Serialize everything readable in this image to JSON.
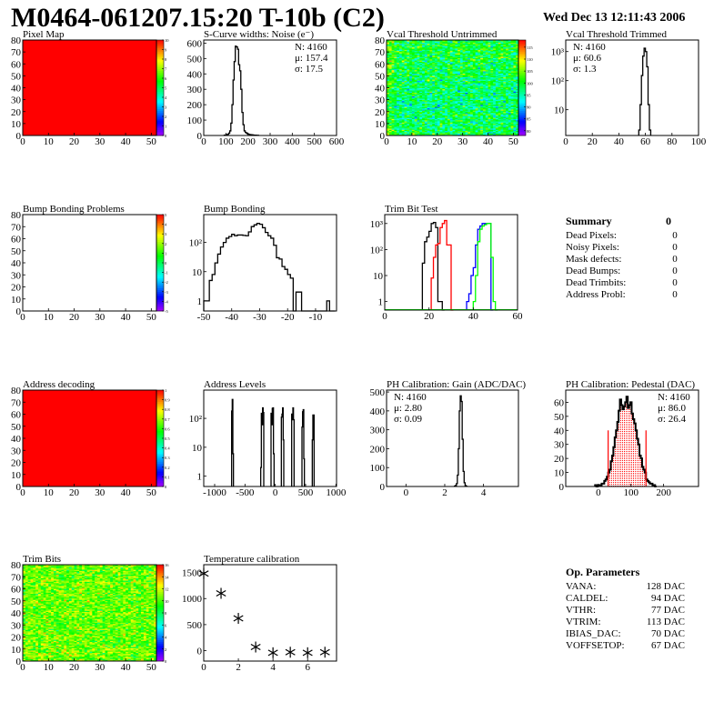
{
  "header": {
    "title": "M0464-061207.15:20 T-10b (C2)",
    "date": "Wed Dec 13 12:11:43 2006"
  },
  "summary": {
    "heading": "Summary",
    "total": "0",
    "rows": [
      {
        "label": "Dead Pixels:",
        "value": "0"
      },
      {
        "label": "Noisy Pixels:",
        "value": "0"
      },
      {
        "label": "Mask defects:",
        "value": "0"
      },
      {
        "label": "Dead Bumps:",
        "value": "0"
      },
      {
        "label": "Dead Trimbits:",
        "value": "0"
      },
      {
        "label": "Address Probl:",
        "value": "0"
      }
    ]
  },
  "op_parameters": {
    "heading": "Op. Parameters",
    "rows": [
      {
        "label": "VANA:",
        "value": "128 DAC"
      },
      {
        "label": "CALDEL:",
        "value": "94 DAC"
      },
      {
        "label": "VTHR:",
        "value": "77 DAC"
      },
      {
        "label": "VTRIM:",
        "value": "113 DAC"
      },
      {
        "label": "IBIAS_DAC:",
        "value": "70 DAC"
      },
      {
        "label": "VOFFSETOP:",
        "value": "67 DAC"
      }
    ]
  },
  "chart_data": [
    {
      "type": "heatmap",
      "title": "Pixel Map",
      "xlim": [
        0,
        52
      ],
      "ylim": [
        0,
        80
      ],
      "zlim": [
        0,
        10
      ],
      "fill_value": 10,
      "xticks": [
        0,
        10,
        20,
        30,
        40,
        50
      ],
      "xtick_labels": [
        "0",
        "10",
        "20",
        "30",
        "40",
        "50"
      ],
      "yticks": [
        0,
        10,
        20,
        30,
        40,
        50,
        60,
        70,
        80
      ],
      "ytick_labels": [
        "0",
        "10",
        "20",
        "30",
        "40",
        "50",
        "60",
        "70",
        "80"
      ],
      "zticks": [
        0,
        1,
        2,
        3,
        4,
        5,
        6,
        7,
        8,
        9,
        10
      ],
      "ztick_labels": [
        "0",
        "1",
        "2",
        "3",
        "4",
        "5",
        "6",
        "7",
        "8",
        "9",
        "10"
      ]
    },
    {
      "type": "bar",
      "title": "S-Curve widths: Noise (e⁻)",
      "xlim": [
        0,
        600
      ],
      "ylim": [
        0,
        620
      ],
      "log_y": false,
      "xticks": [
        0,
        100,
        200,
        300,
        400,
        500,
        600
      ],
      "xtick_labels": [
        "0",
        "100",
        "200",
        "300",
        "400",
        "500",
        "600"
      ],
      "yticks": [
        0,
        100,
        200,
        300,
        400,
        500,
        600
      ],
      "ytick_labels": [
        "0",
        "100",
        "200",
        "300",
        "400",
        "500",
        "600"
      ],
      "stats": [
        "N: 4160",
        "μ: 157.4",
        "σ: 17.5"
      ],
      "stats_colors": [
        "#000000",
        "#000000",
        "#000000"
      ],
      "series": [
        {
          "color": "#000000",
          "x_start": 92.5,
          "bin_width": 5,
          "values": [
            2,
            3,
            5,
            8,
            15,
            30,
            80,
            200,
            360,
            480,
            580,
            575,
            560,
            460,
            420,
            300,
            150,
            70,
            30,
            20,
            15,
            10,
            8,
            6,
            5,
            4,
            3,
            2,
            2,
            1,
            1
          ]
        }
      ]
    },
    {
      "type": "heatmap",
      "title": "Vcal Threshold Untrimmed",
      "xlim": [
        0,
        52
      ],
      "ylim": [
        0,
        80
      ],
      "zlim": [
        78,
        118
      ],
      "z_mean": 97,
      "z_sd": 4,
      "xticks": [
        0,
        10,
        20,
        30,
        40,
        50
      ],
      "xtick_labels": [
        "0",
        "10",
        "20",
        "30",
        "40",
        "50"
      ],
      "yticks": [
        0,
        10,
        20,
        30,
        40,
        50,
        60,
        70,
        80
      ],
      "ytick_labels": [
        "0",
        "10",
        "20",
        "30",
        "40",
        "50",
        "60",
        "70",
        "80"
      ],
      "zticks": [
        80,
        85,
        90,
        95,
        100,
        105,
        110,
        115
      ],
      "ztick_labels": [
        "80",
        "85",
        "90",
        "95",
        "100",
        "105",
        "110",
        "115"
      ]
    },
    {
      "type": "bar",
      "title": "Vcal Threshold Trimmed",
      "xlim": [
        0,
        100
      ],
      "ylim": [
        1.3,
        2500
      ],
      "log_y": true,
      "xticks": [
        0,
        20,
        40,
        60,
        80,
        100
      ],
      "xtick_labels": [
        "0",
        "20",
        "40",
        "60",
        "80",
        "100"
      ],
      "yticks": [
        10,
        100,
        1000
      ],
      "ytick_labels": [
        "10",
        "10²",
        "10³"
      ],
      "stats": [
        "N: 4160",
        "μ: 60.6",
        "σ:  1.3"
      ],
      "stats_colors": [
        "#000000",
        "#000000",
        "#000000"
      ],
      "series": [
        {
          "color": "#000000",
          "x_start": 55,
          "bin_width": 1,
          "values": [
            2,
            15,
            150,
            700,
            1300,
            1000,
            300,
            15,
            2
          ]
        }
      ]
    },
    {
      "type": "heatmap",
      "title": "Bump Bonding Problems",
      "xlim": [
        0,
        52
      ],
      "ylim": [
        0,
        80
      ],
      "zlim": [
        -5,
        5
      ],
      "fill_value": null,
      "xticks": [
        0,
        10,
        20,
        30,
        40,
        50
      ],
      "xtick_labels": [
        "0",
        "10",
        "20",
        "30",
        "40",
        "50"
      ],
      "yticks": [
        0,
        10,
        20,
        30,
        40,
        50,
        60,
        70,
        80
      ],
      "ytick_labels": [
        "0",
        "10",
        "20",
        "30",
        "40",
        "50",
        "60",
        "70",
        "80"
      ],
      "zticks": [
        -5,
        -4,
        -3,
        -2,
        -1,
        0,
        1,
        2,
        3,
        4,
        5
      ],
      "ztick_labels": [
        "-5",
        "-4",
        "-3",
        "-2",
        "-1",
        "0",
        "1",
        "2",
        "3",
        "4",
        "5"
      ]
    },
    {
      "type": "bar",
      "title": "Bump Bonding",
      "xlim": [
        -50,
        -2.5
      ],
      "ylim": [
        0.45,
        900
      ],
      "log_y": true,
      "xticks": [
        -50,
        -40,
        -30,
        -20,
        -10
      ],
      "xtick_labels": [
        "-50",
        "-40",
        "-30",
        "-20",
        "-10"
      ],
      "yticks": [
        1,
        10,
        100
      ],
      "ytick_labels": [
        "1",
        "10",
        "10²"
      ],
      "series": [
        {
          "color": "#000000",
          "x_start": -50,
          "bin_width": 1,
          "values": [
            1,
            1,
            5,
            8,
            20,
            40,
            70,
            100,
            140,
            160,
            190,
            170,
            180,
            180,
            175,
            170,
            230,
            350,
            400,
            450,
            420,
            320,
            220,
            170,
            140,
            80,
            30,
            27,
            15,
            12,
            8,
            6,
            0,
            2,
            2,
            0,
            0,
            0,
            0,
            0,
            0,
            0,
            0,
            0,
            1,
            0,
            0
          ]
        }
      ]
    },
    {
      "type": "bar",
      "title": "Trim Bit Test",
      "xlim": [
        0,
        60
      ],
      "ylim": [
        0.47,
        2200
      ],
      "log_y": true,
      "xticks": [
        0,
        20,
        40,
        60
      ],
      "xtick_labels": [
        "0",
        "20",
        "40",
        "60"
      ],
      "yticks": [
        1,
        10,
        100,
        1000
      ],
      "ytick_labels": [
        "1",
        "10",
        "10²",
        "10³"
      ],
      "series": [
        {
          "color": "#000000",
          "x_start": 17,
          "bin_width": 1,
          "values": [
            30,
            200,
            300,
            500,
            1000,
            1100,
            700,
            1,
            1,
            0
          ]
        },
        {
          "color": "#ff0000",
          "x_start": 21,
          "bin_width": 1,
          "values": [
            8,
            50,
            150,
            170,
            700,
            1000,
            1300,
            150,
            150,
            0
          ]
        },
        {
          "color": "#0000ff",
          "x_start": 37,
          "bin_width": 1,
          "values": [
            1,
            2,
            10,
            20,
            150,
            600,
            800,
            1000,
            1000,
            1000,
            1000,
            0
          ]
        },
        {
          "color": "#00ff00",
          "x_start": 40,
          "bin_width": 1,
          "values": [
            1,
            10,
            200,
            600,
            800,
            900,
            1000,
            1000,
            50,
            1,
            0
          ]
        }
      ]
    },
    {
      "type": "heatmap",
      "title": "Address decoding",
      "xlim": [
        0,
        52
      ],
      "ylim": [
        0,
        80
      ],
      "zlim": [
        0,
        1
      ],
      "fill_value": 1,
      "xticks": [
        0,
        10,
        20,
        30,
        40,
        50
      ],
      "xtick_labels": [
        "0",
        "10",
        "20",
        "30",
        "40",
        "50"
      ],
      "yticks": [
        0,
        10,
        20,
        30,
        40,
        50,
        60,
        70,
        80
      ],
      "ytick_labels": [
        "0",
        "10",
        "20",
        "30",
        "40",
        "50",
        "60",
        "70",
        "80"
      ],
      "zticks": [
        0,
        0.1,
        0.2,
        0.3,
        0.4,
        0.5,
        0.6,
        0.7,
        0.8,
        0.9,
        1
      ],
      "ztick_labels": [
        "0",
        "0.1",
        "0.2",
        "0.3",
        "0.4",
        "0.5",
        "0.6",
        "0.7",
        "0.8",
        "0.9",
        "1"
      ]
    },
    {
      "type": "bar",
      "title": "Address Levels",
      "xlim": [
        -1180,
        1010
      ],
      "ylim": [
        0.44,
        950
      ],
      "log_y": true,
      "xticks": [
        -1000,
        -500,
        0,
        500,
        1000
      ],
      "xtick_labels": [
        "-1000",
        "-500",
        "0",
        "500",
        "1000"
      ],
      "yticks": [
        1,
        10,
        100
      ],
      "ytick_labels": [
        "1",
        "10",
        "10²"
      ],
      "series": [
        {
          "color": "#000000",
          "bin_width": 10,
          "bins": [
            [
              -720,
              180
            ],
            [
              -710,
              450
            ],
            [
              -700,
              6
            ],
            [
              -240,
              2
            ],
            [
              -230,
              150
            ],
            [
              -220,
              60
            ],
            [
              -210,
              230
            ],
            [
              -200,
              160
            ],
            [
              -70,
              150
            ],
            [
              -60,
              60
            ],
            [
              -50,
              220
            ],
            [
              -40,
              230
            ],
            [
              -30,
              6
            ],
            [
              100,
              110
            ],
            [
              110,
              140
            ],
            [
              120,
              230
            ],
            [
              130,
              18
            ],
            [
              270,
              140
            ],
            [
              280,
              90
            ],
            [
              290,
              230
            ],
            [
              300,
              90
            ],
            [
              440,
              50
            ],
            [
              450,
              170
            ],
            [
              460,
              200
            ],
            [
              470,
              4
            ],
            [
              610,
              18
            ],
            [
              620,
              130
            ],
            [
              630,
              130
            ]
          ]
        }
      ]
    },
    {
      "type": "bar",
      "title": "PH Calibration: Gain (ADC/DAC)",
      "xlim": [
        -1,
        5.8
      ],
      "ylim": [
        0,
        510
      ],
      "log_y": false,
      "xticks": [
        0,
        2,
        4
      ],
      "xtick_labels": [
        "0",
        "2",
        "4"
      ],
      "yticks": [
        0,
        100,
        200,
        300,
        400,
        500
      ],
      "ytick_labels": [
        "0",
        "100",
        "200",
        "300",
        "400",
        "500"
      ],
      "stats": [
        "N: 4160",
        "μ: 2.80",
        "σ: 0.09"
      ],
      "stats_colors": [
        "#000000",
        "#000000",
        "#000000"
      ],
      "series": [
        {
          "color": "#000000",
          "x_start": 2.5,
          "bin_width": 0.05,
          "values": [
            2,
            5,
            15,
            60,
            200,
            400,
            480,
            450,
            250,
            80,
            20,
            5,
            1
          ]
        }
      ]
    },
    {
      "type": "bar",
      "title": "PH Calibration: Pedestal (DAC)",
      "xlim": [
        -100,
        307
      ],
      "ylim": [
        0,
        68.7
      ],
      "log_y": false,
      "xticks": [
        0,
        100,
        200
      ],
      "xtick_labels": [
        "0",
        "100",
        "200"
      ],
      "yticks": [
        0,
        10,
        20,
        30,
        40,
        50,
        60
      ],
      "ytick_labels": [
        "0",
        "10",
        "20",
        "30",
        "40",
        "50",
        "60"
      ],
      "stats": [
        "N: 4160",
        "μ: 86.0",
        "σ: 26.4"
      ],
      "stats_colors": [
        "#000000",
        "#ff0000",
        "#ff0000"
      ],
      "fit_range": [
        30,
        146
      ],
      "fit_color": "#ff0000",
      "series": [
        {
          "color": "#000000",
          "x_start": -10,
          "bin_width": 4,
          "values": [
            1,
            0,
            1,
            1,
            1,
            2,
            2,
            4,
            5,
            7,
            10,
            12,
            18,
            22,
            28,
            35,
            40,
            46,
            54,
            62,
            58,
            55,
            57,
            60,
            64,
            56,
            58,
            60,
            52,
            48,
            45,
            40,
            34,
            30,
            22,
            20,
            14,
            12,
            10,
            5,
            4,
            3,
            2,
            2,
            1,
            1,
            0
          ]
        }
      ]
    },
    {
      "type": "heatmap",
      "title": "Trim Bits",
      "xlim": [
        0,
        52
      ],
      "ylim": [
        0,
        80
      ],
      "zlim": [
        0,
        16
      ],
      "z_mean": 10.5,
      "z_sd": 1.3,
      "xticks": [
        0,
        10,
        20,
        30,
        40,
        50
      ],
      "xtick_labels": [
        "0",
        "10",
        "20",
        "30",
        "40",
        "50"
      ],
      "yticks": [
        0,
        10,
        20,
        30,
        40,
        50,
        60,
        70,
        80
      ],
      "ytick_labels": [
        "0",
        "10",
        "20",
        "30",
        "40",
        "50",
        "60",
        "70",
        "80"
      ],
      "zticks": [
        0,
        2,
        4,
        6,
        8,
        10,
        12,
        14,
        16
      ],
      "ztick_labels": [
        "0",
        "2",
        "4",
        "6",
        "8",
        "10",
        "12",
        "14",
        "16"
      ]
    },
    {
      "type": "scatter",
      "title": "Temperature calibration",
      "xlim": [
        0,
        7.67
      ],
      "ylim": [
        -200,
        1650
      ],
      "marker": "asterisk",
      "xticks": [
        0,
        2,
        4,
        6
      ],
      "xtick_labels": [
        "0",
        "2",
        "4",
        "6"
      ],
      "yticks": [
        0,
        500,
        1000,
        1500
      ],
      "ytick_labels": [
        "0",
        "500",
        "1000",
        "1500"
      ],
      "x": [
        0,
        1,
        2,
        3,
        4,
        5,
        6,
        7
      ],
      "y": [
        1480,
        1100,
        620,
        70,
        -40,
        -30,
        -40,
        -30
      ]
    }
  ]
}
